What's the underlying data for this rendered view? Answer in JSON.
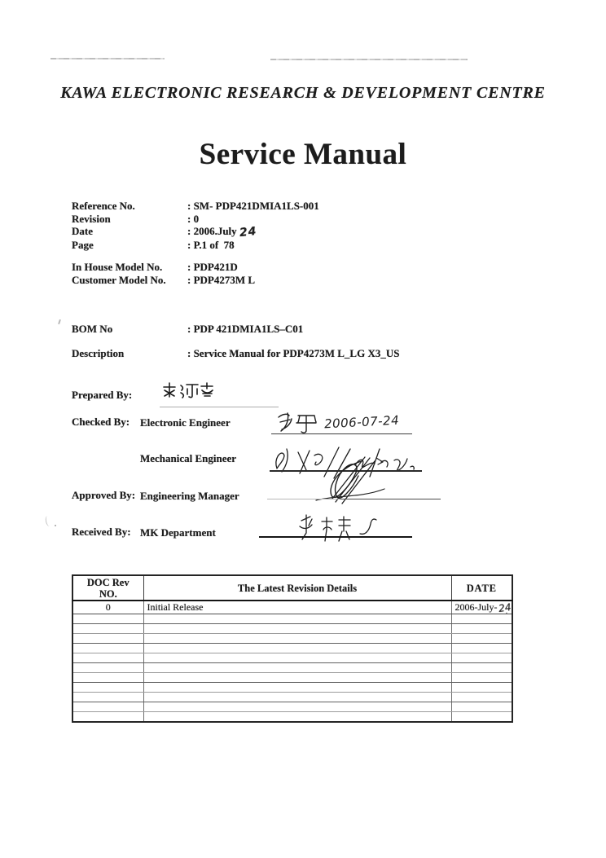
{
  "document": {
    "organization": "KAWA ELECTRONIC RESEARCH & DEVELOPMENT CENTRE",
    "title": "Service Manual",
    "ink_color": "#1c1c1c",
    "paper_color": "#ffffff"
  },
  "info": {
    "rows": [
      {
        "label": "Reference No.",
        "value": ": SM- PDP421DMIA1LS-001"
      },
      {
        "label": "Revision",
        "value": ": 0"
      },
      {
        "label": "Date",
        "value": ": 2006.July",
        "handwritten": "24"
      },
      {
        "label": "Page",
        "value": ": P.1 of  78"
      }
    ],
    "model_rows": [
      {
        "label": "In House Model No.",
        "value": ": PDP421D"
      },
      {
        "label": "Customer Model No.",
        "value": ": PDP4273M L"
      }
    ],
    "bom": {
      "label": "BOM No",
      "value": ": PDP 421DMIA1LS–C01"
    },
    "description": {
      "label": "Description",
      "value": ": Service Manual for PDP4273M L_LG X3_US"
    }
  },
  "approvals": {
    "prepared": {
      "label": "Prepared By:",
      "signature_transcription": "练沛珍"
    },
    "checked": {
      "label": "Checked By:",
      "roles": [
        {
          "role": "Electronic Engineer",
          "signature_transcription": "刘军",
          "signature_date": "2006-07-24"
        },
        {
          "role": "Mechanical Engineer",
          "signature_transcription": "handwritten signature with date"
        }
      ]
    },
    "approved": {
      "label": "Approved By:",
      "role": "Engineering Manager",
      "signature_transcription": "handwritten initials"
    },
    "received": {
      "label": "Received By:",
      "role": "MK Department",
      "signature_transcription": "handwritten name"
    }
  },
  "revision_table": {
    "headers": {
      "rev": "DOC Rev\nNO.",
      "details": "The Latest Revision Details",
      "date": "DATE"
    },
    "rows": [
      {
        "rev": "0",
        "details": "Initial Release",
        "date_printed": "2006-July-",
        "date_handwritten": "24"
      }
    ],
    "empty_row_count": 11
  }
}
